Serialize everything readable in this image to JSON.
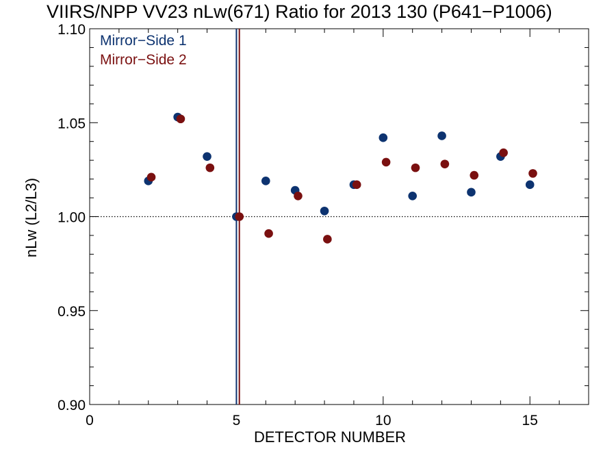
{
  "chart_data": {
    "type": "scatter",
    "title": "VIIRS/NPP VV23 nLw(671) Ratio for 2013 130 (P641−P1006)",
    "xlabel": "DETECTOR NUMBER",
    "ylabel": "nLw (L2/L3)",
    "xlim": [
      0,
      17
    ],
    "ylim": [
      0.9,
      1.1
    ],
    "xticks": [
      0,
      5,
      10,
      15
    ],
    "xtick_labels": [
      "0",
      "5",
      "10",
      "15"
    ],
    "yticks": [
      0.9,
      0.95,
      1.0,
      1.05,
      1.1
    ],
    "ytick_labels": [
      "0.90",
      "0.95",
      "1.00",
      "1.05",
      "1.10"
    ],
    "reference_line": {
      "y": 1.0,
      "style": "dotted"
    },
    "vertical_lines": [
      {
        "x": 5.0,
        "series": "Mirror−Side 1"
      },
      {
        "x": 5.1,
        "series": "Mirror−Side 2"
      }
    ],
    "legend_position": "top-left",
    "grid": false,
    "series": [
      {
        "name": "Mirror−Side 1",
        "color": "#0d3370",
        "x": [
          2,
          3,
          4,
          5,
          6,
          7,
          8,
          9,
          10,
          11,
          12,
          13,
          14,
          15
        ],
        "y": [
          1.019,
          1.053,
          1.032,
          1.0,
          1.019,
          1.014,
          1.003,
          1.017,
          1.042,
          1.011,
          1.043,
          1.013,
          1.032,
          1.017
        ]
      },
      {
        "name": "Mirror−Side 2",
        "color": "#7a1010",
        "x": [
          2.1,
          3.1,
          4.1,
          5.1,
          6.1,
          7.1,
          8.1,
          9.1,
          10.1,
          11.1,
          12.1,
          13.1,
          14.1,
          15.1
        ],
        "y": [
          1.021,
          1.052,
          1.026,
          1.0,
          0.991,
          1.011,
          0.988,
          1.017,
          1.029,
          1.026,
          1.028,
          1.022,
          1.034,
          1.023
        ]
      }
    ]
  }
}
